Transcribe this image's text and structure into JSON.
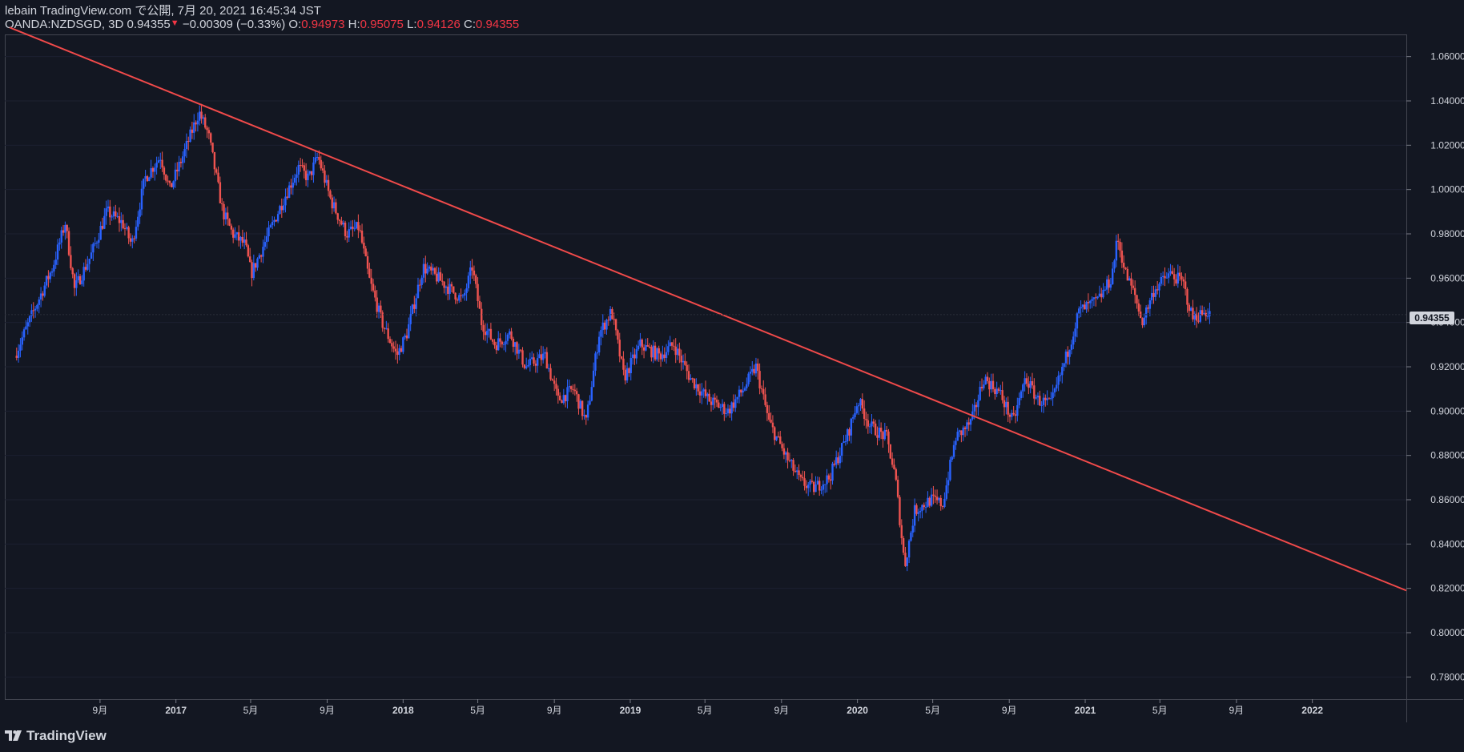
{
  "header": {
    "line1": "lebain TradingView.com で公開, 7月 20, 2021 16:45:34 JST",
    "symbol": "OANDA:NZDSGD, 3D 0.94355",
    "change_arrow": "▼",
    "change": "−0.00309 (−0.33%)",
    "o_label": "O:",
    "o_value": "0.94973",
    "h_label": "H:",
    "h_value": "0.95075",
    "l_label": "L:",
    "l_value": "0.94126",
    "c_label": "C:",
    "c_value": "0.94355"
  },
  "last_price_label": "0.94355",
  "footer": {
    "brand": "TradingView"
  },
  "colors": {
    "background": "#131722",
    "up": "#2962ff",
    "down": "#ef5350",
    "trendline": "#f04a4a",
    "text": "#d1d4dc",
    "axis": "#787b86"
  },
  "chart_data": {
    "type": "candlestick",
    "symbol": "OANDA:NZDSGD",
    "interval": "3D",
    "ylim": [
      0.77,
      1.07
    ],
    "y_ticks": [
      "1.06000",
      "1.04000",
      "1.02000",
      "1.00000",
      "0.98000",
      "0.96000",
      "0.94000",
      "0.92000",
      "0.90000",
      "0.88000",
      "0.86000",
      "0.84000",
      "0.82000",
      "0.80000",
      "0.78000"
    ],
    "x_ticks": [
      "9月",
      "2017",
      "5月",
      "9月",
      "2018",
      "5月",
      "9月",
      "2019",
      "5月",
      "9月",
      "2020",
      "5月",
      "9月",
      "2021",
      "5月",
      "9月",
      "2022"
    ],
    "x_range": [
      "2016-04",
      "2022-06"
    ],
    "trendline": {
      "start": [
        "2016-04-10",
        1.073
      ],
      "end": [
        "2022-06-10",
        0.818
      ]
    },
    "last_price": 0.94355,
    "price_path": [
      [
        "2016-04-20",
        0.925
      ],
      [
        "2016-05-20",
        0.945
      ],
      [
        "2016-06-20",
        0.965
      ],
      [
        "2016-07-10",
        0.985
      ],
      [
        "2016-07-25",
        0.955
      ],
      [
        "2016-08-20",
        0.97
      ],
      [
        "2016-09-15",
        0.99
      ],
      [
        "2016-10-10",
        0.985
      ],
      [
        "2016-10-25",
        0.975
      ],
      [
        "2016-11-15",
        1.005
      ],
      [
        "2016-12-10",
        1.015
      ],
      [
        "2016-12-25",
        1.0
      ],
      [
        "2017-01-15",
        1.015
      ],
      [
        "2017-02-10",
        1.035
      ],
      [
        "2017-02-25",
        1.025
      ],
      [
        "2017-03-20",
        0.99
      ],
      [
        "2017-04-05",
        0.98
      ],
      [
        "2017-04-25",
        0.975
      ],
      [
        "2017-05-05",
        0.962
      ],
      [
        "2017-05-25",
        0.975
      ],
      [
        "2017-06-25",
        0.995
      ],
      [
        "2017-07-20",
        1.01
      ],
      [
        "2017-08-05",
        1.005
      ],
      [
        "2017-08-20",
        1.015
      ],
      [
        "2017-09-10",
        0.995
      ],
      [
        "2017-10-05",
        0.98
      ],
      [
        "2017-10-25",
        0.983
      ],
      [
        "2017-11-10",
        0.96
      ],
      [
        "2017-12-01",
        0.94
      ],
      [
        "2017-12-25",
        0.925
      ],
      [
        "2018-01-10",
        0.935
      ],
      [
        "2018-02-05",
        0.965
      ],
      [
        "2018-03-01",
        0.96
      ],
      [
        "2018-03-20",
        0.955
      ],
      [
        "2018-04-10",
        0.95
      ],
      [
        "2018-04-25",
        0.965
      ],
      [
        "2018-05-10",
        0.94
      ],
      [
        "2018-06-01",
        0.93
      ],
      [
        "2018-06-25",
        0.935
      ],
      [
        "2018-07-20",
        0.92
      ],
      [
        "2018-08-20",
        0.925
      ],
      [
        "2018-09-10",
        0.905
      ],
      [
        "2018-10-05",
        0.91
      ],
      [
        "2018-10-25",
        0.895
      ],
      [
        "2018-11-15",
        0.935
      ],
      [
        "2018-12-05",
        0.945
      ],
      [
        "2018-12-25",
        0.915
      ],
      [
        "2019-01-20",
        0.93
      ],
      [
        "2019-02-20",
        0.925
      ],
      [
        "2019-03-15",
        0.93
      ],
      [
        "2019-04-10",
        0.915
      ],
      [
        "2019-05-10",
        0.905
      ],
      [
        "2019-06-10",
        0.9
      ],
      [
        "2019-07-05",
        0.91
      ],
      [
        "2019-07-25",
        0.92
      ],
      [
        "2019-08-15",
        0.895
      ],
      [
        "2019-09-10",
        0.88
      ],
      [
        "2019-10-05",
        0.868
      ],
      [
        "2019-10-25",
        0.865
      ],
      [
        "2019-11-20",
        0.87
      ],
      [
        "2019-12-20",
        0.89
      ],
      [
        "2020-01-05",
        0.905
      ],
      [
        "2020-01-25",
        0.893
      ],
      [
        "2020-02-20",
        0.888
      ],
      [
        "2020-03-05",
        0.87
      ],
      [
        "2020-03-20",
        0.83
      ],
      [
        "2020-04-05",
        0.855
      ],
      [
        "2020-05-01",
        0.86
      ],
      [
        "2020-05-20",
        0.858
      ],
      [
        "2020-06-10",
        0.888
      ],
      [
        "2020-07-05",
        0.895
      ],
      [
        "2020-07-25",
        0.915
      ],
      [
        "2020-08-20",
        0.908
      ],
      [
        "2020-09-10",
        0.895
      ],
      [
        "2020-09-30",
        0.915
      ],
      [
        "2020-10-20",
        0.905
      ],
      [
        "2020-11-10",
        0.903
      ],
      [
        "2020-12-05",
        0.925
      ],
      [
        "2020-12-25",
        0.945
      ],
      [
        "2021-01-25",
        0.95
      ],
      [
        "2021-02-15",
        0.96
      ],
      [
        "2021-02-25",
        0.978
      ],
      [
        "2021-03-10",
        0.962
      ],
      [
        "2021-03-25",
        0.952
      ],
      [
        "2021-04-05",
        0.94
      ],
      [
        "2021-04-25",
        0.955
      ],
      [
        "2021-05-20",
        0.962
      ],
      [
        "2021-06-10",
        0.958
      ],
      [
        "2021-06-25",
        0.942
      ],
      [
        "2021-07-20",
        0.945
      ]
    ]
  }
}
